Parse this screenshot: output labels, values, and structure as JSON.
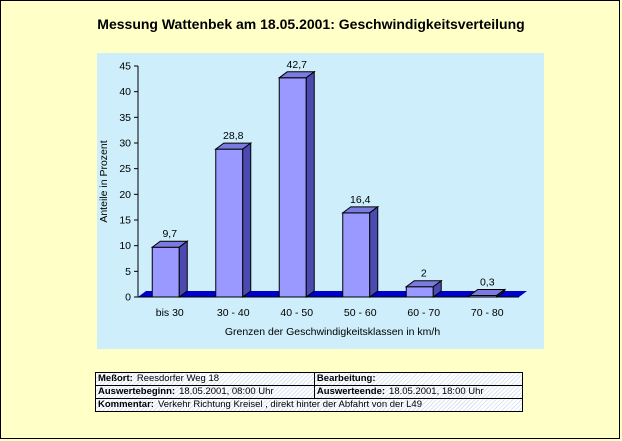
{
  "title": "Messung Wattenbek am 18.05.2001: Geschwindigkeitsverteilung",
  "chart_data": {
    "type": "bar",
    "categories": [
      "bis 30",
      "30 - 40",
      "40 - 50",
      "50 - 60",
      "60 - 70",
      "70 - 80"
    ],
    "values": [
      9.7,
      28.8,
      42.7,
      16.4,
      2,
      0.3
    ],
    "value_labels": [
      "9,7",
      "28,8",
      "42,7",
      "16,4",
      "2",
      "0,3"
    ],
    "title": "",
    "xlabel": "Grenzen der Geschwindigkeitsklassen in km/h",
    "ylabel": "Anteile in Prozent",
    "ylim": [
      0,
      45
    ],
    "yticks": [
      0,
      5,
      10,
      15,
      20,
      25,
      30,
      35,
      40,
      45
    ],
    "grid": false,
    "colors": {
      "bar_front": "#9999ff",
      "bar_top": "#7a7ae0",
      "bar_side": "#4a4ab0",
      "floor": "#0000cc",
      "plot_bg": "#cdeefa"
    }
  },
  "info": {
    "messort_label": "Meßort:",
    "messort_value": "Reesdorfer Weg 18",
    "bearbeitung_label": "Bearbeitung:",
    "bearbeitung_value": "",
    "auswertebeginn_label": "Auswertebeginn:",
    "auswertebeginn_value": "18.05.2001, 08:00 Uhr",
    "auswerteende_label": "Auswerteende:",
    "auswerteende_value": "18.05.2001, 18:00 Uhr",
    "kommentar_label": "Kommentar:",
    "kommentar_value": "Verkehr Richtung Kreisel , direkt hinter der Abfahrt von der L49"
  }
}
